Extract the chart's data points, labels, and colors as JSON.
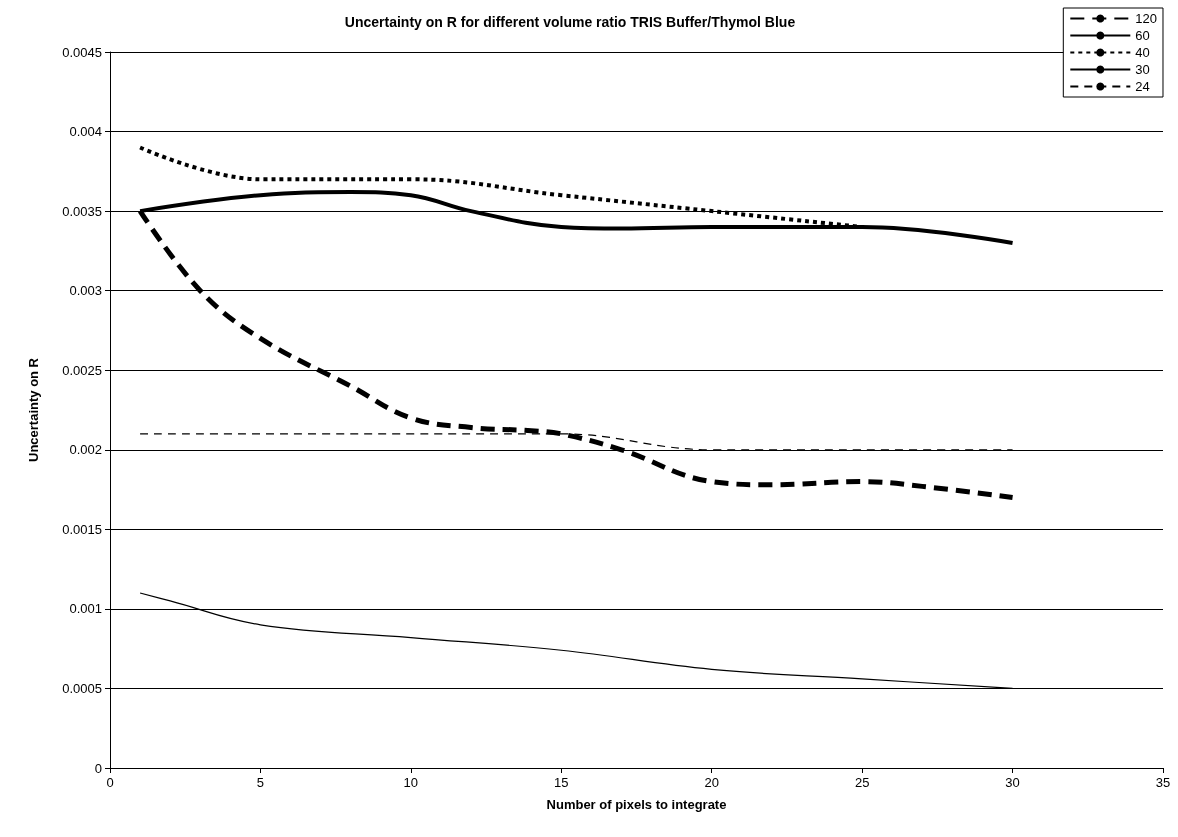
{
  "chart_data": {
    "type": "line",
    "title": "Uncertainty on R for different volume ratio TRIS Buffer/Thymol Blue",
    "xlabel": "Number of pixels to integrate",
    "ylabel": "Uncertainty on R",
    "xlim": [
      0,
      35
    ],
    "xticks": [
      0,
      5,
      10,
      15,
      20,
      25,
      30,
      35
    ],
    "ylim": [
      0,
      0.0045
    ],
    "yticks": [
      0,
      0.0005,
      0.001,
      0.0015,
      0.002,
      0.0025,
      0.003,
      0.0035,
      0.004,
      0.0045
    ],
    "grid": "y",
    "legend": "top right",
    "marker": "none",
    "series": [
      {
        "name": "120",
        "color": "#000000",
        "line_style": "dashed",
        "x": [
          1,
          3,
          5,
          8,
          10,
          12,
          14,
          15,
          17,
          20,
          22,
          25,
          27,
          30
        ],
        "values": [
          0.0035,
          0.003,
          0.0027,
          0.0024,
          0.0022,
          0.00214,
          0.00212,
          0.0021,
          0.002,
          0.0018,
          0.00178,
          0.0018,
          0.00177,
          0.0017
        ]
      },
      {
        "name": "60",
        "color": "#000000",
        "line_style": "solid",
        "x": [
          1,
          5,
          8,
          10,
          12,
          15,
          17,
          20,
          25,
          30
        ],
        "values": [
          0.0035,
          0.0036,
          0.00362,
          0.0036,
          0.0035,
          0.0034,
          0.00339,
          0.0034,
          0.0034,
          0.0033
        ]
      },
      {
        "name": "40",
        "color": "#000000",
        "line_style": "dotted",
        "x": [
          1,
          5,
          10,
          15,
          20,
          25
        ],
        "values": [
          0.0039,
          0.0037,
          0.0037,
          0.0036,
          0.0035,
          0.0034
        ]
      },
      {
        "name": "30",
        "color": "#000000",
        "line_style": "solid",
        "x": [
          1,
          2,
          5,
          10,
          15,
          20,
          25,
          30
        ],
        "values": [
          0.0011,
          0.00105,
          0.0009,
          0.00082,
          0.00074,
          0.00062,
          0.00056,
          0.0005
        ]
      },
      {
        "name": "24",
        "color": "#000000",
        "line_style": "dashed",
        "x": [
          1,
          10,
          15,
          20,
          25,
          30
        ],
        "values": [
          0.0021,
          0.0021,
          0.0021,
          0.002,
          0.002,
          0.002
        ]
      }
    ]
  }
}
